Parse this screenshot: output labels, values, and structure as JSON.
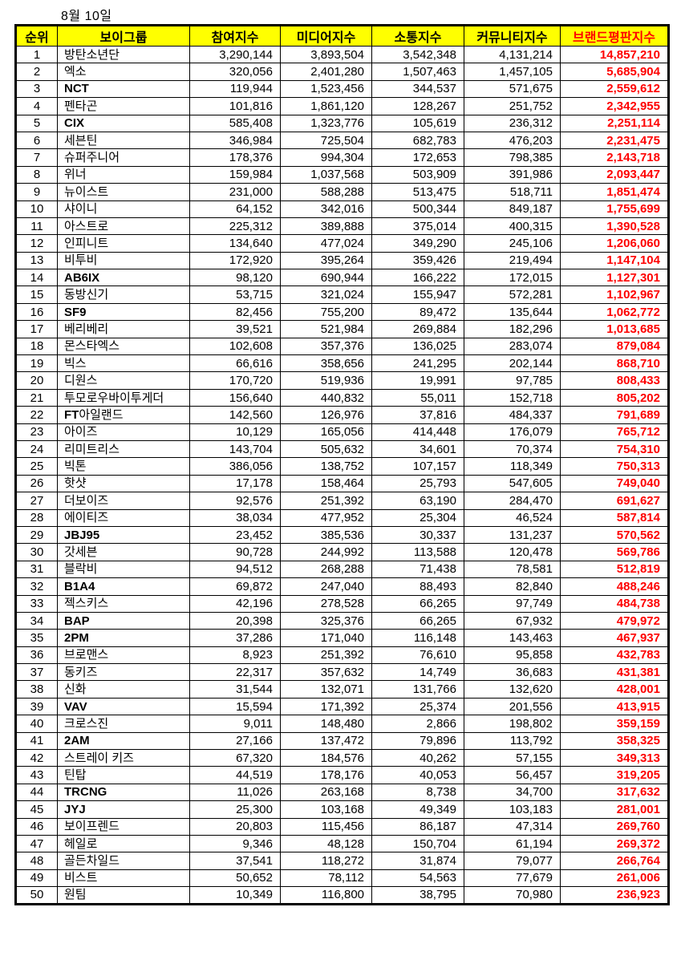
{
  "title": "8월 10일",
  "colors": {
    "header_bg": "#ffff00",
    "accent_red": "#fe0000",
    "border": "#000000"
  },
  "table": {
    "headers": [
      "순위",
      "보이그룹",
      "참여지수",
      "미디어지수",
      "소통지수",
      "커뮤니티지수",
      "브랜드평판지수"
    ],
    "rows": [
      [
        "1",
        "방탄소년단",
        "3,290,144",
        "3,893,504",
        "3,542,348",
        "4,131,214",
        "14,857,210"
      ],
      [
        "2",
        "엑소",
        "320,056",
        "2,401,280",
        "1,507,463",
        "1,457,105",
        "5,685,904"
      ],
      [
        "3",
        "NCT",
        "119,944",
        "1,523,456",
        "344,537",
        "571,675",
        "2,559,612"
      ],
      [
        "4",
        "펜타곤",
        "101,816",
        "1,861,120",
        "128,267",
        "251,752",
        "2,342,955"
      ],
      [
        "5",
        "CIX",
        "585,408",
        "1,323,776",
        "105,619",
        "236,312",
        "2,251,114"
      ],
      [
        "6",
        "세븐틴",
        "346,984",
        "725,504",
        "682,783",
        "476,203",
        "2,231,475"
      ],
      [
        "7",
        "슈퍼주니어",
        "178,376",
        "994,304",
        "172,653",
        "798,385",
        "2,143,718"
      ],
      [
        "8",
        "위너",
        "159,984",
        "1,037,568",
        "503,909",
        "391,986",
        "2,093,447"
      ],
      [
        "9",
        "뉴이스트",
        "231,000",
        "588,288",
        "513,475",
        "518,711",
        "1,851,474"
      ],
      [
        "10",
        "샤이니",
        "64,152",
        "342,016",
        "500,344",
        "849,187",
        "1,755,699"
      ],
      [
        "11",
        "아스트로",
        "225,312",
        "389,888",
        "375,014",
        "400,315",
        "1,390,528"
      ],
      [
        "12",
        "인피니트",
        "134,640",
        "477,024",
        "349,290",
        "245,106",
        "1,206,060"
      ],
      [
        "13",
        "비투비",
        "172,920",
        "395,264",
        "359,426",
        "219,494",
        "1,147,104"
      ],
      [
        "14",
        "AB6IX",
        "98,120",
        "690,944",
        "166,222",
        "172,015",
        "1,127,301"
      ],
      [
        "15",
        "동방신기",
        "53,715",
        "321,024",
        "155,947",
        "572,281",
        "1,102,967"
      ],
      [
        "16",
        "SF9",
        "82,456",
        "755,200",
        "89,472",
        "135,644",
        "1,062,772"
      ],
      [
        "17",
        "베리베리",
        "39,521",
        "521,984",
        "269,884",
        "182,296",
        "1,013,685"
      ],
      [
        "18",
        "몬스타엑스",
        "102,608",
        "357,376",
        "136,025",
        "283,074",
        "879,084"
      ],
      [
        "19",
        "빅스",
        "66,616",
        "358,656",
        "241,295",
        "202,144",
        "868,710"
      ],
      [
        "20",
        "디원스",
        "170,720",
        "519,936",
        "19,991",
        "97,785",
        "808,433"
      ],
      [
        "21",
        "투모로우바이투게더",
        "156,640",
        "440,832",
        "55,011",
        "152,718",
        "805,202"
      ],
      [
        "22",
        "FT아일랜드",
        "142,560",
        "126,976",
        "37,816",
        "484,337",
        "791,689"
      ],
      [
        "23",
        "아이즈",
        "10,129",
        "165,056",
        "414,448",
        "176,079",
        "765,712"
      ],
      [
        "24",
        "리미트리스",
        "143,704",
        "505,632",
        "34,601",
        "70,374",
        "754,310"
      ],
      [
        "25",
        "빅톤",
        "386,056",
        "138,752",
        "107,157",
        "118,349",
        "750,313"
      ],
      [
        "26",
        "핫샷",
        "17,178",
        "158,464",
        "25,793",
        "547,605",
        "749,040"
      ],
      [
        "27",
        "더보이즈",
        "92,576",
        "251,392",
        "63,190",
        "284,470",
        "691,627"
      ],
      [
        "28",
        "에이티즈",
        "38,034",
        "477,952",
        "25,304",
        "46,524",
        "587,814"
      ],
      [
        "29",
        "JBJ95",
        "23,452",
        "385,536",
        "30,337",
        "131,237",
        "570,562"
      ],
      [
        "30",
        "갓세븐",
        "90,728",
        "244,992",
        "113,588",
        "120,478",
        "569,786"
      ],
      [
        "31",
        "블락비",
        "94,512",
        "268,288",
        "71,438",
        "78,581",
        "512,819"
      ],
      [
        "32",
        "B1A4",
        "69,872",
        "247,040",
        "88,493",
        "82,840",
        "488,246"
      ],
      [
        "33",
        "젝스키스",
        "42,196",
        "278,528",
        "66,265",
        "97,749",
        "484,738"
      ],
      [
        "34",
        "BAP",
        "20,398",
        "325,376",
        "66,265",
        "67,932",
        "479,972"
      ],
      [
        "35",
        "2PM",
        "37,286",
        "171,040",
        "116,148",
        "143,463",
        "467,937"
      ],
      [
        "36",
        "브로맨스",
        "8,923",
        "251,392",
        "76,610",
        "95,858",
        "432,783"
      ],
      [
        "37",
        "동키즈",
        "22,317",
        "357,632",
        "14,749",
        "36,683",
        "431,381"
      ],
      [
        "38",
        "신화",
        "31,544",
        "132,071",
        "131,766",
        "132,620",
        "428,001"
      ],
      [
        "39",
        "VAV",
        "15,594",
        "171,392",
        "25,374",
        "201,556",
        "413,915"
      ],
      [
        "40",
        "크로스진",
        "9,011",
        "148,480",
        "2,866",
        "198,802",
        "359,159"
      ],
      [
        "41",
        "2AM",
        "27,166",
        "137,472",
        "79,896",
        "113,792",
        "358,325"
      ],
      [
        "42",
        "스트레이 키즈",
        "67,320",
        "184,576",
        "40,262",
        "57,155",
        "349,313"
      ],
      [
        "43",
        "틴탑",
        "44,519",
        "178,176",
        "40,053",
        "56,457",
        "319,205"
      ],
      [
        "44",
        "TRCNG",
        "11,026",
        "263,168",
        "8,738",
        "34,700",
        "317,632"
      ],
      [
        "45",
        "JYJ",
        "25,300",
        "103,168",
        "49,349",
        "103,183",
        "281,001"
      ],
      [
        "46",
        "보이프렌드",
        "20,803",
        "115,456",
        "86,187",
        "47,314",
        "269,760"
      ],
      [
        "47",
        "헤일로",
        "9,346",
        "48,128",
        "150,704",
        "61,194",
        "269,372"
      ],
      [
        "48",
        "골든차일드",
        "37,541",
        "118,272",
        "31,874",
        "79,077",
        "266,764"
      ],
      [
        "49",
        "비스트",
        "50,652",
        "78,112",
        "54,563",
        "77,679",
        "261,006"
      ],
      [
        "50",
        "원팀",
        "10,349",
        "116,800",
        "38,795",
        "70,980",
        "236,923"
      ]
    ]
  }
}
